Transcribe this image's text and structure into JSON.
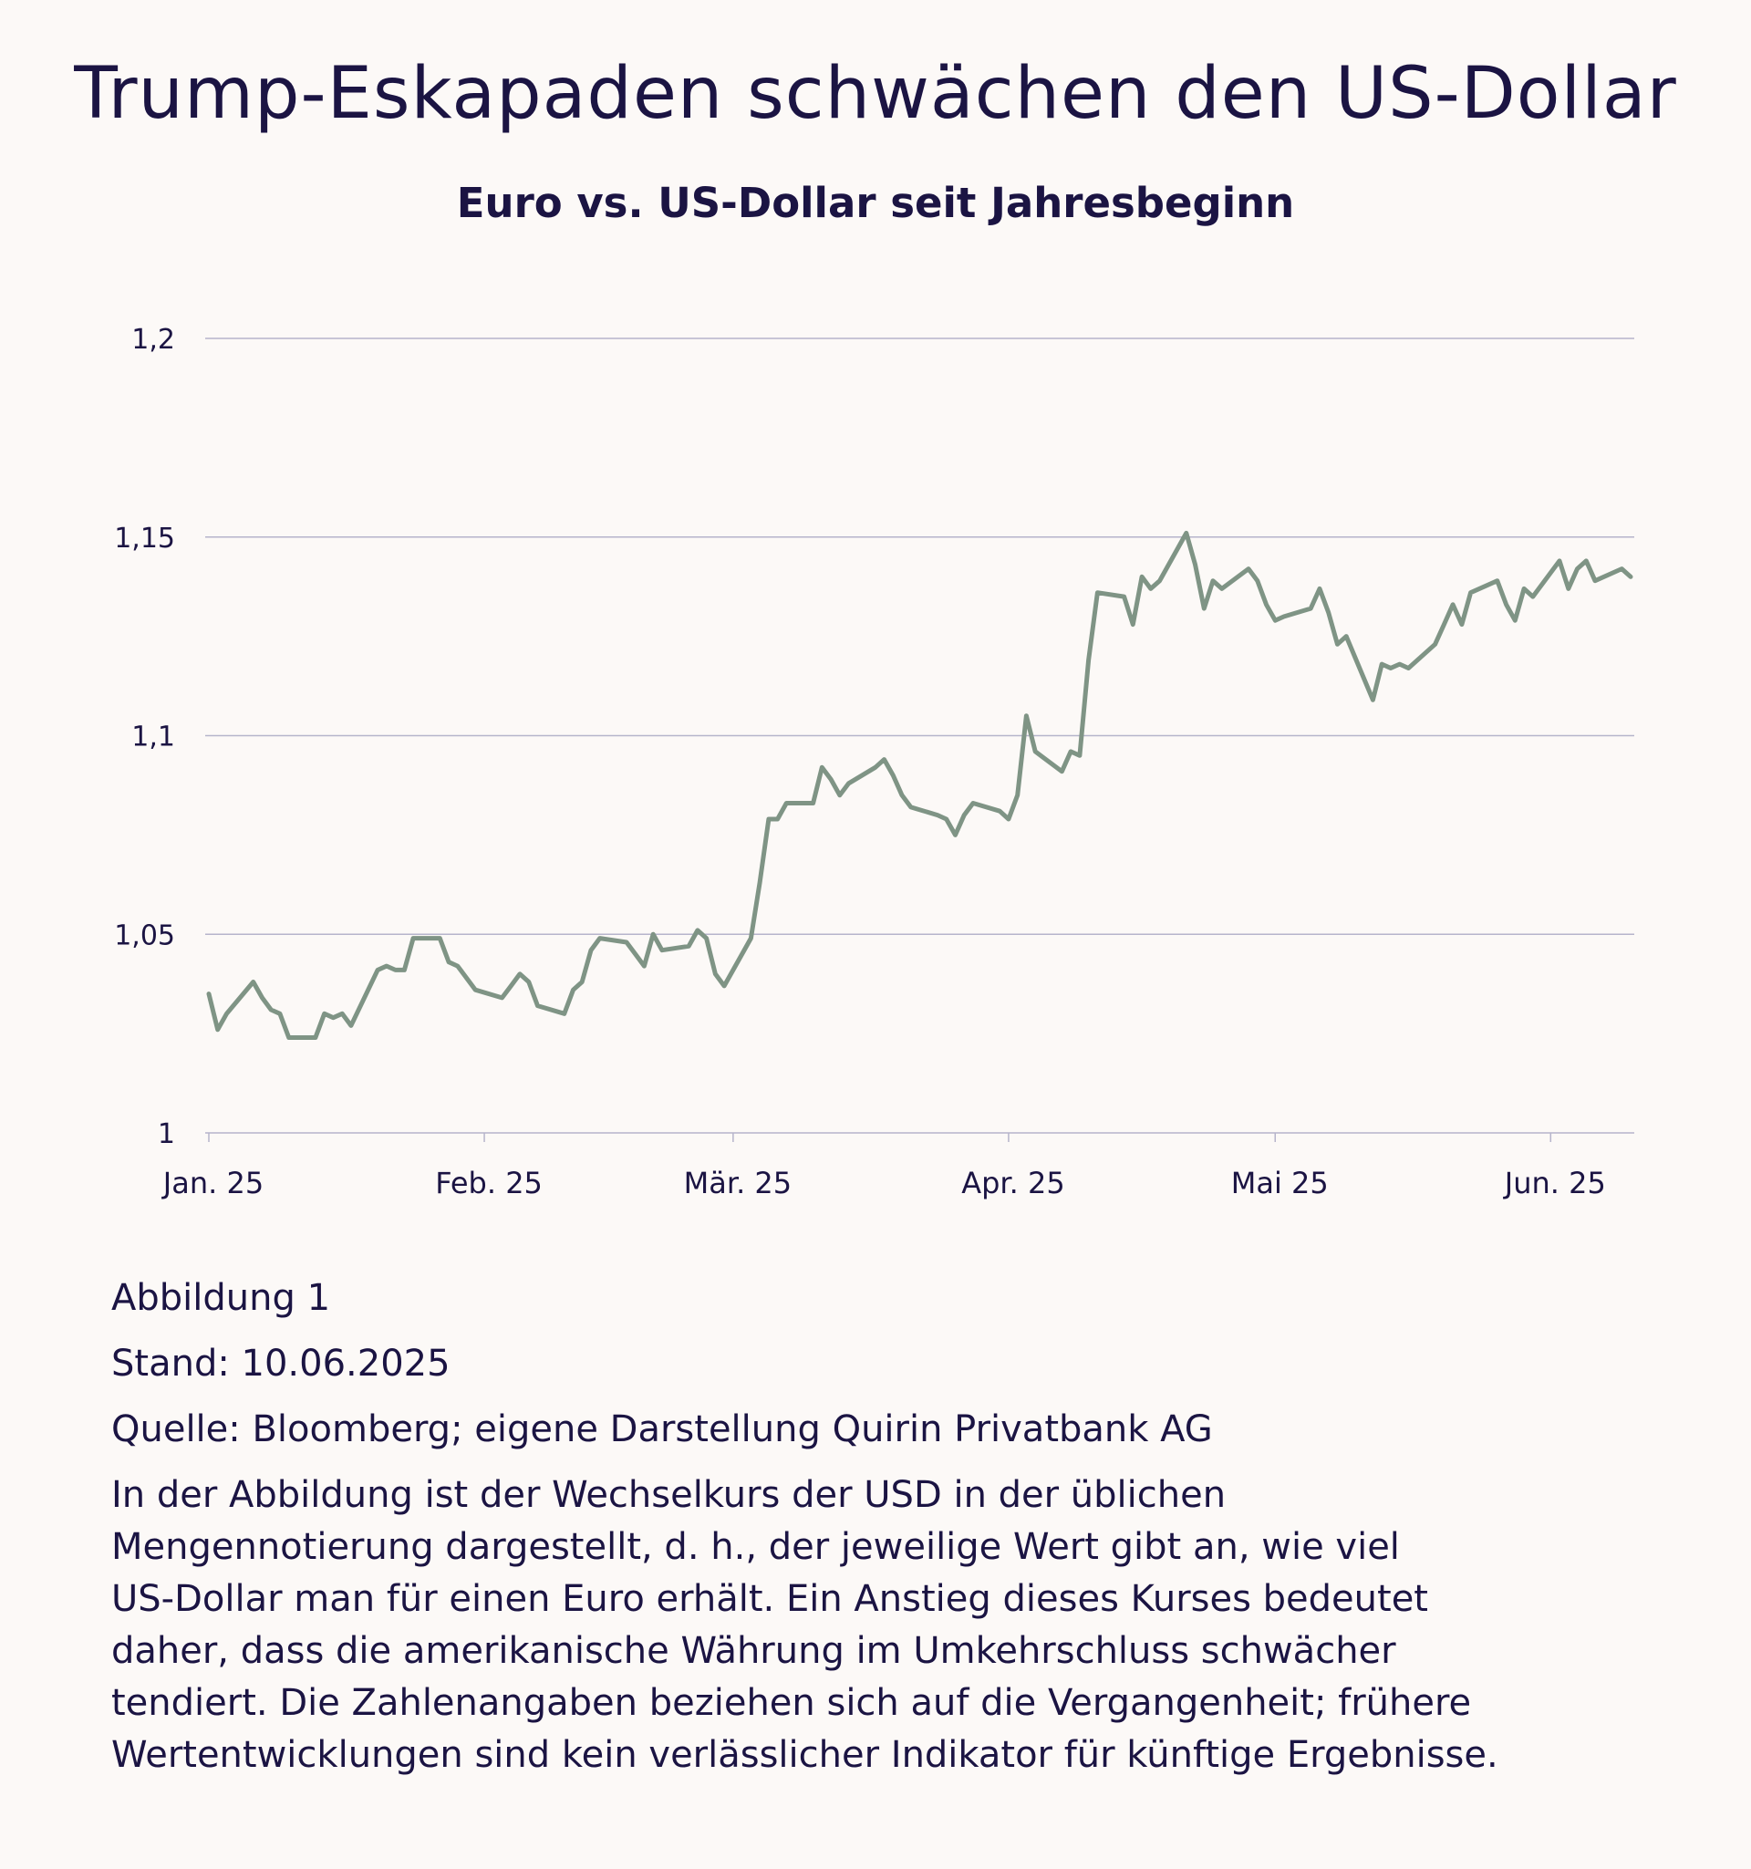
{
  "header": {
    "title": "Trump-Eskapaden schwächen den US-Dollar",
    "subtitle": "Euro vs. US-Dollar seit Jahresbeginn"
  },
  "colors": {
    "line": "#7f9485",
    "grid": "#b6b4cb",
    "text": "#1b1443",
    "background": "#fcf9f7"
  },
  "chart_data": {
    "type": "line",
    "title": "Trump-Eskapaden schwächen den US-Dollar",
    "subtitle": "Euro vs. US-Dollar seit Jahresbeginn",
    "xlabel": "",
    "ylabel": "",
    "ylim": [
      1.0,
      1.2
    ],
    "xlim": [
      "2025-01-01",
      "2025-06-10"
    ],
    "grid": true,
    "legend": "none",
    "y_ticks": [
      {
        "value": 1.0,
        "label": "1"
      },
      {
        "value": 1.05,
        "label": "1,05"
      },
      {
        "value": 1.1,
        "label": "1,1"
      },
      {
        "value": 1.15,
        "label": "1,15"
      },
      {
        "value": 1.2,
        "label": "1,2"
      }
    ],
    "x_ticks": [
      {
        "date": "2025-01-01",
        "label": "Jan. 25"
      },
      {
        "date": "2025-02-01",
        "label": "Feb. 25"
      },
      {
        "date": "2025-03-01",
        "label": "Mär. 25"
      },
      {
        "date": "2025-04-01",
        "label": "Apr. 25"
      },
      {
        "date": "2025-05-01",
        "label": "Mai 25"
      },
      {
        "date": "2025-06-01",
        "label": "Jun. 25"
      }
    ],
    "series": [
      {
        "points": [
          [
            "2025-01-01",
            1.035
          ],
          [
            "2025-01-02",
            1.026
          ],
          [
            "2025-01-03",
            1.03
          ],
          [
            "2025-01-06",
            1.038
          ],
          [
            "2025-01-07",
            1.034
          ],
          [
            "2025-01-08",
            1.031
          ],
          [
            "2025-01-09",
            1.03
          ],
          [
            "2025-01-10",
            1.024
          ],
          [
            "2025-01-13",
            1.024
          ],
          [
            "2025-01-14",
            1.03
          ],
          [
            "2025-01-15",
            1.029
          ],
          [
            "2025-01-16",
            1.03
          ],
          [
            "2025-01-17",
            1.027
          ],
          [
            "2025-01-20",
            1.041
          ],
          [
            "2025-01-21",
            1.042
          ],
          [
            "2025-01-22",
            1.041
          ],
          [
            "2025-01-23",
            1.041
          ],
          [
            "2025-01-24",
            1.049
          ],
          [
            "2025-01-27",
            1.049
          ],
          [
            "2025-01-28",
            1.043
          ],
          [
            "2025-01-29",
            1.042
          ],
          [
            "2025-01-30",
            1.039
          ],
          [
            "2025-01-31",
            1.036
          ],
          [
            "2025-02-03",
            1.034
          ],
          [
            "2025-02-04",
            1.037
          ],
          [
            "2025-02-05",
            1.04
          ],
          [
            "2025-02-06",
            1.038
          ],
          [
            "2025-02-07",
            1.032
          ],
          [
            "2025-02-10",
            1.03
          ],
          [
            "2025-02-11",
            1.036
          ],
          [
            "2025-02-12",
            1.038
          ],
          [
            "2025-02-13",
            1.046
          ],
          [
            "2025-02-14",
            1.049
          ],
          [
            "2025-02-17",
            1.048
          ],
          [
            "2025-02-18",
            1.045
          ],
          [
            "2025-02-19",
            1.042
          ],
          [
            "2025-02-20",
            1.05
          ],
          [
            "2025-02-21",
            1.046
          ],
          [
            "2025-02-24",
            1.047
          ],
          [
            "2025-02-25",
            1.051
          ],
          [
            "2025-02-26",
            1.049
          ],
          [
            "2025-02-27",
            1.04
          ],
          [
            "2025-02-28",
            1.037
          ],
          [
            "2025-03-03",
            1.049
          ],
          [
            "2025-03-04",
            1.063
          ],
          [
            "2025-03-05",
            1.079
          ],
          [
            "2025-03-06",
            1.079
          ],
          [
            "2025-03-07",
            1.083
          ],
          [
            "2025-03-10",
            1.083
          ],
          [
            "2025-03-11",
            1.092
          ],
          [
            "2025-03-12",
            1.089
          ],
          [
            "2025-03-13",
            1.085
          ],
          [
            "2025-03-14",
            1.088
          ],
          [
            "2025-03-17",
            1.092
          ],
          [
            "2025-03-18",
            1.094
          ],
          [
            "2025-03-19",
            1.09
          ],
          [
            "2025-03-20",
            1.085
          ],
          [
            "2025-03-21",
            1.082
          ],
          [
            "2025-03-24",
            1.08
          ],
          [
            "2025-03-25",
            1.079
          ],
          [
            "2025-03-26",
            1.075
          ],
          [
            "2025-03-27",
            1.08
          ],
          [
            "2025-03-28",
            1.083
          ],
          [
            "2025-03-31",
            1.081
          ],
          [
            "2025-04-01",
            1.079
          ],
          [
            "2025-04-02",
            1.085
          ],
          [
            "2025-04-03",
            1.105
          ],
          [
            "2025-04-04",
            1.096
          ],
          [
            "2025-04-07",
            1.091
          ],
          [
            "2025-04-08",
            1.096
          ],
          [
            "2025-04-09",
            1.095
          ],
          [
            "2025-04-10",
            1.119
          ],
          [
            "2025-04-11",
            1.136
          ],
          [
            "2025-04-14",
            1.135
          ],
          [
            "2025-04-15",
            1.128
          ],
          [
            "2025-04-16",
            1.14
          ],
          [
            "2025-04-17",
            1.137
          ],
          [
            "2025-04-18",
            1.139
          ],
          [
            "2025-04-21",
            1.151
          ],
          [
            "2025-04-22",
            1.143
          ],
          [
            "2025-04-23",
            1.132
          ],
          [
            "2025-04-24",
            1.139
          ],
          [
            "2025-04-25",
            1.137
          ],
          [
            "2025-04-28",
            1.142
          ],
          [
            "2025-04-29",
            1.139
          ],
          [
            "2025-04-30",
            1.133
          ],
          [
            "2025-05-01",
            1.129
          ],
          [
            "2025-05-02",
            1.13
          ],
          [
            "2025-05-05",
            1.132
          ],
          [
            "2025-05-06",
            1.137
          ],
          [
            "2025-05-07",
            1.131
          ],
          [
            "2025-05-08",
            1.123
          ],
          [
            "2025-05-09",
            1.125
          ],
          [
            "2025-05-12",
            1.109
          ],
          [
            "2025-05-13",
            1.118
          ],
          [
            "2025-05-14",
            1.117
          ],
          [
            "2025-05-15",
            1.118
          ],
          [
            "2025-05-16",
            1.117
          ],
          [
            "2025-05-19",
            1.123
          ],
          [
            "2025-05-20",
            1.128
          ],
          [
            "2025-05-21",
            1.133
          ],
          [
            "2025-05-22",
            1.128
          ],
          [
            "2025-05-23",
            1.136
          ],
          [
            "2025-05-26",
            1.139
          ],
          [
            "2025-05-27",
            1.133
          ],
          [
            "2025-05-28",
            1.129
          ],
          [
            "2025-05-29",
            1.137
          ],
          [
            "2025-05-30",
            1.135
          ],
          [
            "2025-06-02",
            1.144
          ],
          [
            "2025-06-03",
            1.137
          ],
          [
            "2025-06-04",
            1.142
          ],
          [
            "2025-06-05",
            1.144
          ],
          [
            "2025-06-06",
            1.139
          ],
          [
            "2025-06-09",
            1.142
          ],
          [
            "2025-06-10",
            1.14
          ]
        ]
      }
    ]
  },
  "notes": {
    "figure": "Abbildung 1",
    "date": "Stand: 10.06.2025",
    "source": "Quelle: Bloomberg; eigene Darstellung Quirin Privatbank AG",
    "lines": [
      "In der Abbildung ist der Wechselkurs der USD in der üblichen",
      "Mengennotierung dargestellt, d. h., der jeweilige Wert gibt an, wie viel",
      "US-Dollar man für einen Euro erhält. Ein Anstieg dieses Kurses bedeutet",
      "daher, dass die amerikanische Währung im Umkehrschluss schwächer",
      "tendiert. Die Zahlenangaben beziehen sich auf die Vergangenheit; frühere",
      "Wertentwicklungen sind kein verlässlicher Indikator für künftige Ergebnisse."
    ]
  }
}
